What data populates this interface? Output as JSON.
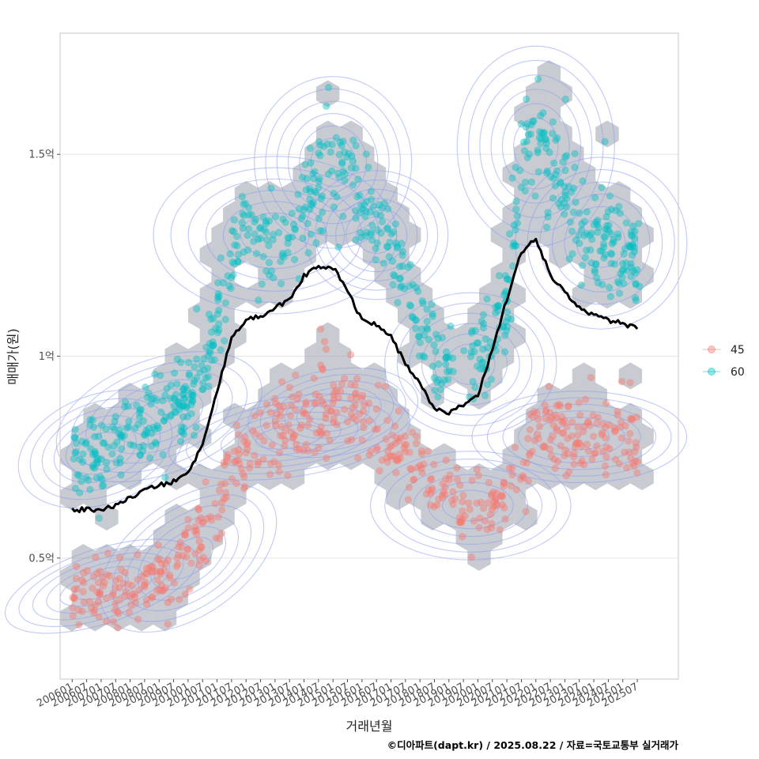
{
  "chart_data": {
    "type": "scatter",
    "xlabel": "거래년월",
    "ylabel": "매매가(원)",
    "credit": "©디아파트(dapt.kr) / 2025.08.22 / 자료=국토교통부 실거래가",
    "x_ticks": [
      "200601",
      "200607",
      "200701",
      "200707",
      "200801",
      "200807",
      "200901",
      "200907",
      "201001",
      "201007",
      "201101",
      "201107",
      "201201",
      "201207",
      "201301",
      "201307",
      "201401",
      "201407",
      "201501",
      "201507",
      "201601",
      "201607",
      "201701",
      "201707",
      "201801",
      "201807",
      "201901",
      "201907",
      "202001",
      "202007",
      "202101",
      "202107",
      "202201",
      "202207",
      "202301",
      "202307",
      "202401",
      "202407",
      "202501",
      "202507"
    ],
    "y_ticks": [
      {
        "value": 0.5,
        "label": "0.5억"
      },
      {
        "value": 1.0,
        "label": "1억"
      },
      {
        "value": 1.5,
        "label": "1.5억"
      }
    ],
    "xlim": [
      "2005-08",
      "2026-12"
    ],
    "ylim": [
      0.2,
      1.8
    ],
    "y_unit": "억원",
    "grid": true,
    "legend_position": "right",
    "colors": {
      "s45": "#f8766d",
      "s60": "#00bfc4",
      "line": "#000000",
      "hex": "#9aa1ab",
      "contour": "#8c9ff0",
      "grid": "#e6e6e6",
      "border": "#c8c8c8"
    },
    "series": [
      {
        "name": "45",
        "color": "#f8766d",
        "trend": [
          [
            "2006-01",
            0.41
          ],
          [
            "2006-07",
            0.42
          ],
          [
            "2007-01",
            0.42
          ],
          [
            "2007-07",
            0.43
          ],
          [
            "2008-01",
            0.43
          ],
          [
            "2008-07",
            0.44
          ],
          [
            "2009-01",
            0.45
          ],
          [
            "2009-07",
            0.48
          ],
          [
            "2010-01",
            0.52
          ],
          [
            "2010-07",
            0.56
          ],
          [
            "2011-01",
            0.62
          ],
          [
            "2011-07",
            0.72
          ],
          [
            "2012-01",
            0.77
          ],
          [
            "2012-07",
            0.79
          ],
          [
            "2013-01",
            0.8
          ],
          [
            "2013-07",
            0.82
          ],
          [
            "2014-01",
            0.84
          ],
          [
            "2014-07",
            0.87
          ],
          [
            "2015-01",
            0.89
          ],
          [
            "2015-07",
            0.88
          ],
          [
            "2016-01",
            0.84
          ],
          [
            "2016-07",
            0.8
          ],
          [
            "2017-01",
            0.77
          ],
          [
            "2017-07",
            0.74
          ],
          [
            "2018-01",
            0.71
          ],
          [
            "2018-07",
            0.68
          ],
          [
            "2019-01",
            0.65
          ],
          [
            "2019-07",
            0.63
          ],
          [
            "2020-01",
            0.62
          ],
          [
            "2020-07",
            0.63
          ],
          [
            "2021-01",
            0.66
          ],
          [
            "2021-07",
            0.72
          ],
          [
            "2022-01",
            0.8
          ],
          [
            "2022-07",
            0.82
          ],
          [
            "2023-01",
            0.8
          ],
          [
            "2023-07",
            0.79
          ],
          [
            "2024-01",
            0.8
          ],
          [
            "2024-07",
            0.8
          ],
          [
            "2025-01",
            0.79
          ],
          [
            "2025-07",
            0.78
          ]
        ]
      },
      {
        "name": "60",
        "color": "#00bfc4",
        "trend": [
          [
            "2006-01",
            0.77
          ],
          [
            "2006-07",
            0.76
          ],
          [
            "2007-01",
            0.75
          ],
          [
            "2007-07",
            0.78
          ],
          [
            "2008-01",
            0.82
          ],
          [
            "2008-07",
            0.85
          ],
          [
            "2009-01",
            0.86
          ],
          [
            "2009-07",
            0.86
          ],
          [
            "2010-01",
            0.9
          ],
          [
            "2010-07",
            0.95
          ],
          [
            "2011-01",
            1.1
          ],
          [
            "2011-07",
            1.25
          ],
          [
            "2012-01",
            1.3
          ],
          [
            "2012-07",
            1.3
          ],
          [
            "2013-01",
            1.28
          ],
          [
            "2013-07",
            1.3
          ],
          [
            "2014-01",
            1.35
          ],
          [
            "2014-07",
            1.42
          ],
          [
            "2015-01",
            1.5
          ],
          [
            "2015-07",
            1.48
          ],
          [
            "2016-01",
            1.38
          ],
          [
            "2016-07",
            1.32
          ],
          [
            "2017-01",
            1.28
          ],
          [
            "2017-07",
            1.22
          ],
          [
            "2018-01",
            1.05
          ],
          [
            "2018-07",
            1.0
          ],
          [
            "2019-01",
            0.98
          ],
          [
            "2019-07",
            0.98
          ],
          [
            "2020-01",
            0.97
          ],
          [
            "2020-07",
            1.0
          ],
          [
            "2021-01",
            1.15
          ],
          [
            "2021-07",
            1.45
          ],
          [
            "2022-01",
            1.55
          ],
          [
            "2022-07",
            1.48
          ],
          [
            "2023-01",
            1.4
          ],
          [
            "2023-07",
            1.32
          ],
          [
            "2024-01",
            1.28
          ],
          [
            "2024-07",
            1.28
          ],
          [
            "2025-01",
            1.25
          ],
          [
            "2025-07",
            1.25
          ]
        ]
      },
      {
        "name": "median",
        "type": "line",
        "color": "#000000",
        "points": [
          [
            "2006-01",
            0.62
          ],
          [
            "2006-07",
            0.62
          ],
          [
            "2007-01",
            0.62
          ],
          [
            "2007-07",
            0.63
          ],
          [
            "2008-01",
            0.65
          ],
          [
            "2008-07",
            0.67
          ],
          [
            "2009-01",
            0.68
          ],
          [
            "2009-07",
            0.69
          ],
          [
            "2010-01",
            0.71
          ],
          [
            "2010-07",
            0.78
          ],
          [
            "2011-01",
            0.91
          ],
          [
            "2011-07",
            1.05
          ],
          [
            "2012-01",
            1.09
          ],
          [
            "2012-07",
            1.1
          ],
          [
            "2013-01",
            1.12
          ],
          [
            "2013-07",
            1.14
          ],
          [
            "2014-01",
            1.2
          ],
          [
            "2014-07",
            1.22
          ],
          [
            "2015-01",
            1.22
          ],
          [
            "2015-07",
            1.16
          ],
          [
            "2016-01",
            1.09
          ],
          [
            "2016-07",
            1.08
          ],
          [
            "2017-01",
            1.05
          ],
          [
            "2017-07",
            0.98
          ],
          [
            "2018-01",
            0.93
          ],
          [
            "2018-07",
            0.87
          ],
          [
            "2019-01",
            0.86
          ],
          [
            "2019-07",
            0.88
          ],
          [
            "2020-01",
            0.9
          ],
          [
            "2020-07",
            1.02
          ],
          [
            "2021-01",
            1.14
          ],
          [
            "2021-07",
            1.26
          ],
          [
            "2022-01",
            1.29
          ],
          [
            "2022-07",
            1.2
          ],
          [
            "2023-01",
            1.16
          ],
          [
            "2023-07",
            1.12
          ],
          [
            "2024-01",
            1.1
          ],
          [
            "2024-07",
            1.09
          ],
          [
            "2025-01",
            1.08
          ],
          [
            "2025-07",
            1.07
          ]
        ]
      }
    ]
  }
}
